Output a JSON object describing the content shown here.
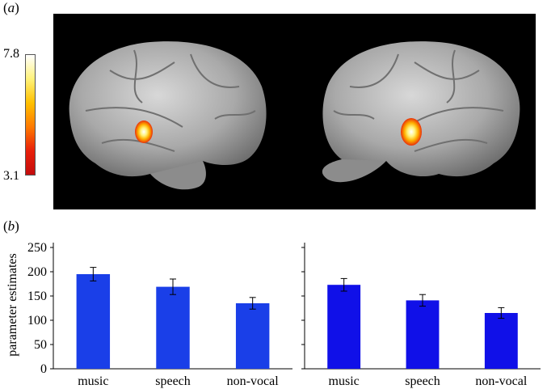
{
  "figure": {
    "panel_a_label": "a",
    "panel_b_label": "b"
  },
  "colorbar": {
    "max_label": "7.8",
    "min_label": "3.1",
    "colors": [
      "#ffffff",
      "#fff27a",
      "#ffc000",
      "#ff7a00",
      "#e8200a",
      "#c40c0c"
    ]
  },
  "brain_images": [
    {
      "hemisphere": "left-view",
      "activation": "superior temporal region"
    },
    {
      "hemisphere": "right-view",
      "activation": "superior temporal region"
    }
  ],
  "chart_data": [
    {
      "type": "bar",
      "categories": [
        "music",
        "speech",
        "non-vocal"
      ],
      "values": [
        195,
        169,
        135
      ],
      "errors": [
        14,
        16,
        12
      ],
      "ylabel": "parameter estimates",
      "ylim": [
        0,
        250
      ],
      "yticks": [
        0,
        50,
        100,
        150,
        200,
        250
      ],
      "bar_color": "#1a3fe8"
    },
    {
      "type": "bar",
      "categories": [
        "music",
        "speech",
        "non-vocal"
      ],
      "values": [
        173,
        141,
        115
      ],
      "errors": [
        13,
        12,
        11
      ],
      "ylabel": "",
      "ylim": [
        0,
        250
      ],
      "yticks": [
        0,
        50,
        100,
        150,
        200,
        250
      ],
      "bar_color": "#1010e8"
    }
  ]
}
